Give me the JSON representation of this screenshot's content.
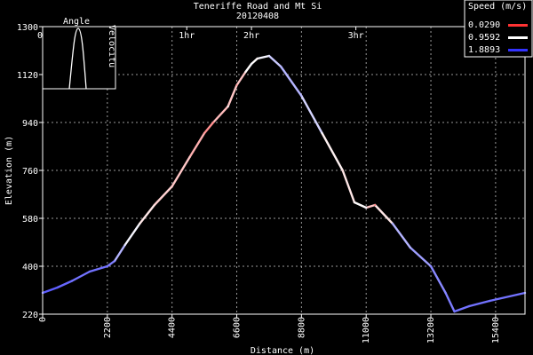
{
  "chart_data": {
    "type": "line",
    "title": "Teneriffe Road and Mt Si",
    "subtitle": "20120408",
    "xlabel": "Distance (m)",
    "ylabel": "Elevation (m)",
    "xlim": [
      0,
      16400
    ],
    "ylim": [
      220,
      1300
    ],
    "x_ticks": [
      "0",
      "2200",
      "4400",
      "6600",
      "8800",
      "11000",
      "13200",
      "15400"
    ],
    "y_ticks": [
      "220",
      "400",
      "580",
      "760",
      "940",
      "1120",
      "1300"
    ],
    "time_ticks": [
      {
        "label": "0H",
        "x": 0
      },
      {
        "label": "1hr",
        "x": 4900
      },
      {
        "label": "2hr",
        "x": 7100
      },
      {
        "label": "3hr",
        "x": 10650
      }
    ],
    "grid": true,
    "legend": {
      "title": "Speed (m/s)",
      "placement": "top-right",
      "entries": [
        {
          "label": "0.0290",
          "color": "#ff3333"
        },
        {
          "label": "0.9592",
          "color": "#ffffff"
        },
        {
          "label": "1.8893",
          "color": "#3333ff"
        }
      ]
    },
    "inset": {
      "title": "Angle",
      "ylabel": "Velocitu",
      "placement": "top-left"
    },
    "series": [
      {
        "x": [
          0,
          500,
          1000,
          1600,
          2200,
          2450,
          2800,
          3300,
          3800,
          4400,
          5000,
          5500,
          5800,
          6300,
          6600,
          6900,
          7100,
          7300,
          7700,
          8100,
          8800,
          9500,
          10200,
          10600,
          11000,
          11300,
          11900,
          12500,
          13200,
          13700,
          14000,
          14500,
          15200,
          16400
        ],
        "y": [
          300,
          320,
          345,
          380,
          400,
          420,
          480,
          560,
          630,
          700,
          810,
          900,
          940,
          1000,
          1080,
          1130,
          1160,
          1180,
          1190,
          1150,
          1040,
          900,
          760,
          640,
          620,
          630,
          560,
          470,
          400,
          300,
          230,
          250,
          270,
          300
        ],
        "speed": [
          1.7,
          1.7,
          1.6,
          1.6,
          1.6,
          1.5,
          1.1,
          0.9,
          0.8,
          0.7,
          0.7,
          0.5,
          0.4,
          0.9,
          0.5,
          0.9,
          1.0,
          0.9,
          1.1,
          1.3,
          1.3,
          1.0,
          0.8,
          0.9,
          1.0,
          0.4,
          1.3,
          1.3,
          1.5,
          1.5,
          1.6,
          1.6,
          1.6,
          1.6
        ]
      }
    ]
  }
}
